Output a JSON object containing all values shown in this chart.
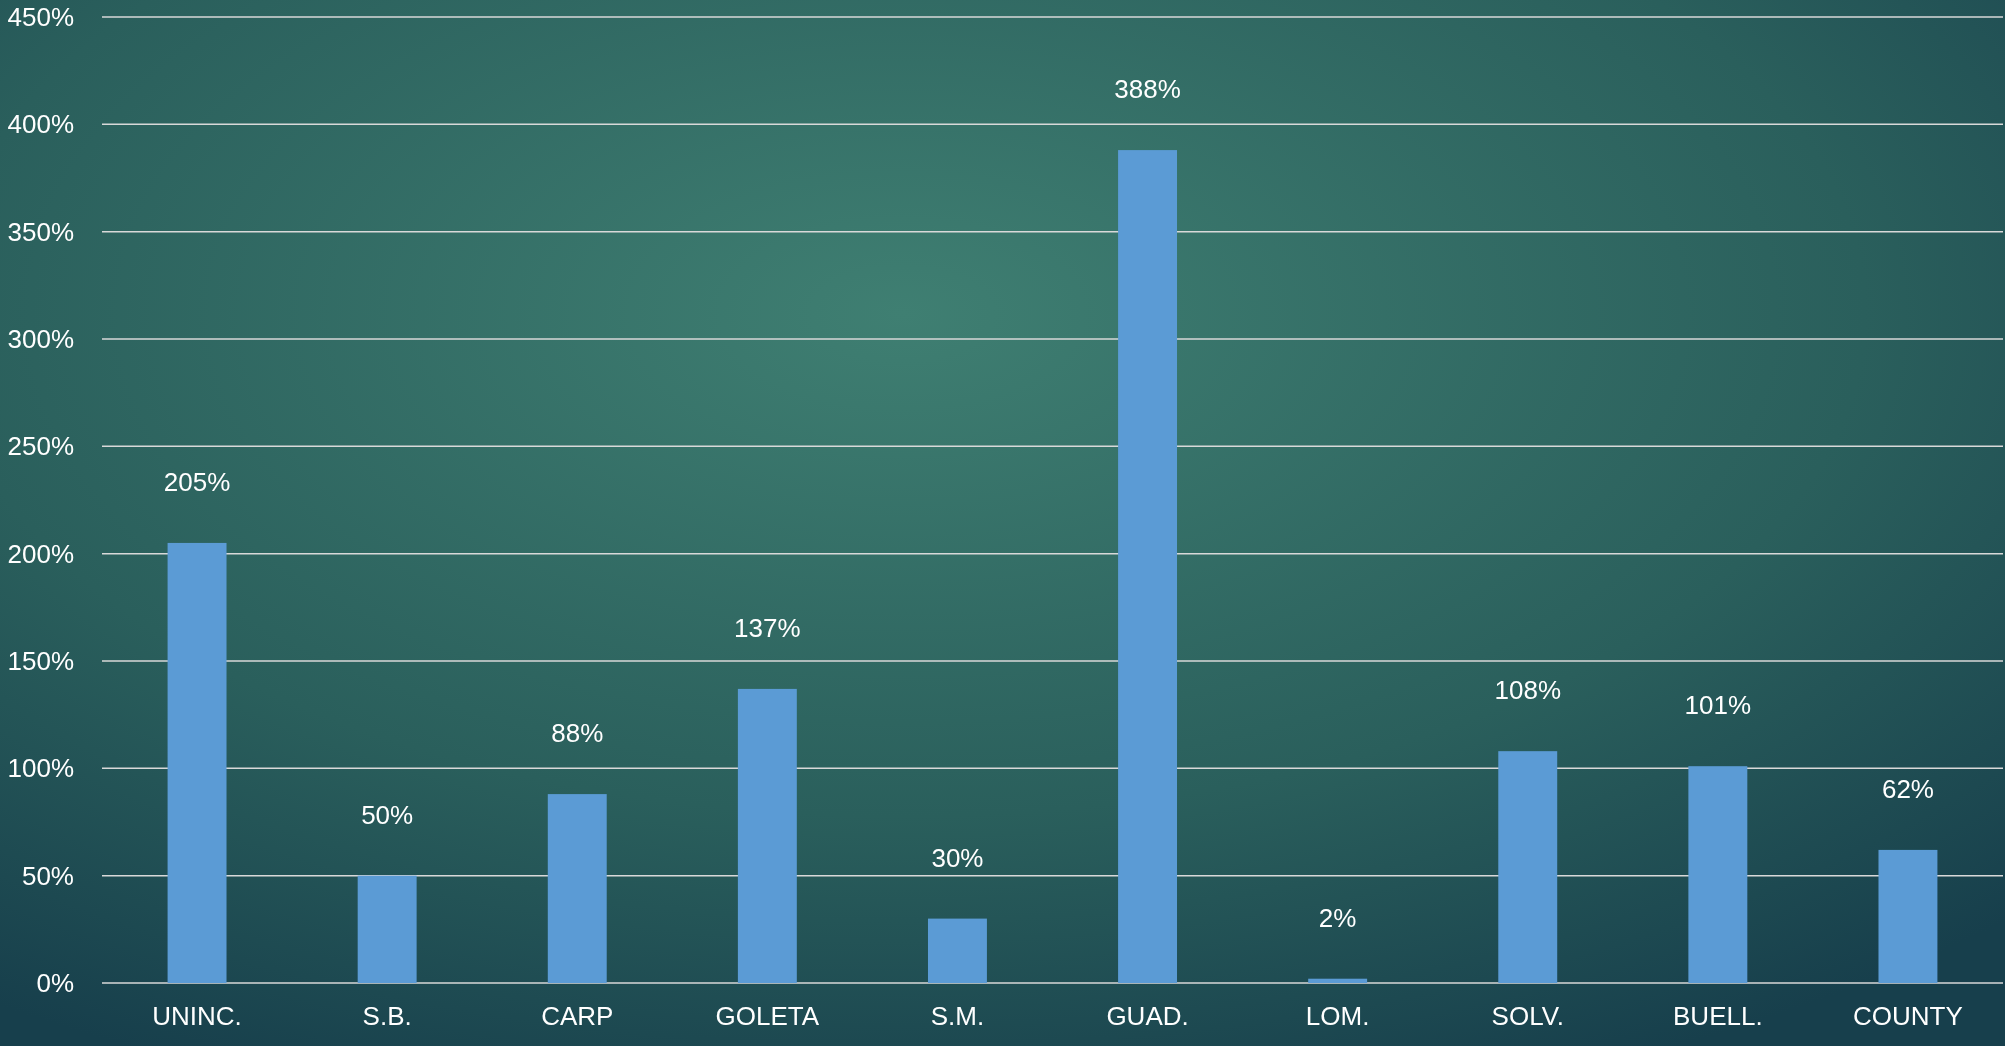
{
  "chart_data": {
    "type": "bar",
    "categories": [
      "UNINC.",
      "S.B.",
      "CARP",
      "GOLETA",
      "S.M.",
      "GUAD.",
      "LOM.",
      "SOLV.",
      "BUELL.",
      "COUNTY"
    ],
    "values": [
      205,
      50,
      88,
      137,
      30,
      388,
      2,
      108,
      101,
      62
    ],
    "value_labels": [
      "205%",
      "50%",
      "88%",
      "137%",
      "30%",
      "388%",
      "2%",
      "108%",
      "101%",
      "62%"
    ],
    "color": "#5b9bd5",
    "ylim": [
      0,
      450
    ],
    "yticks": [
      {
        "value": 0,
        "label": "0%"
      },
      {
        "value": 50,
        "label": "50%"
      },
      {
        "value": 100,
        "label": "100%"
      },
      {
        "value": 150,
        "label": "150%"
      },
      {
        "value": 200,
        "label": "200%"
      },
      {
        "value": 250,
        "label": "250%"
      },
      {
        "value": 300,
        "label": "300%"
      },
      {
        "value": 350,
        "label": "350%"
      },
      {
        "value": 400,
        "label": "400%"
      },
      {
        "value": 450,
        "label": "450%"
      }
    ],
    "grid": "y"
  }
}
